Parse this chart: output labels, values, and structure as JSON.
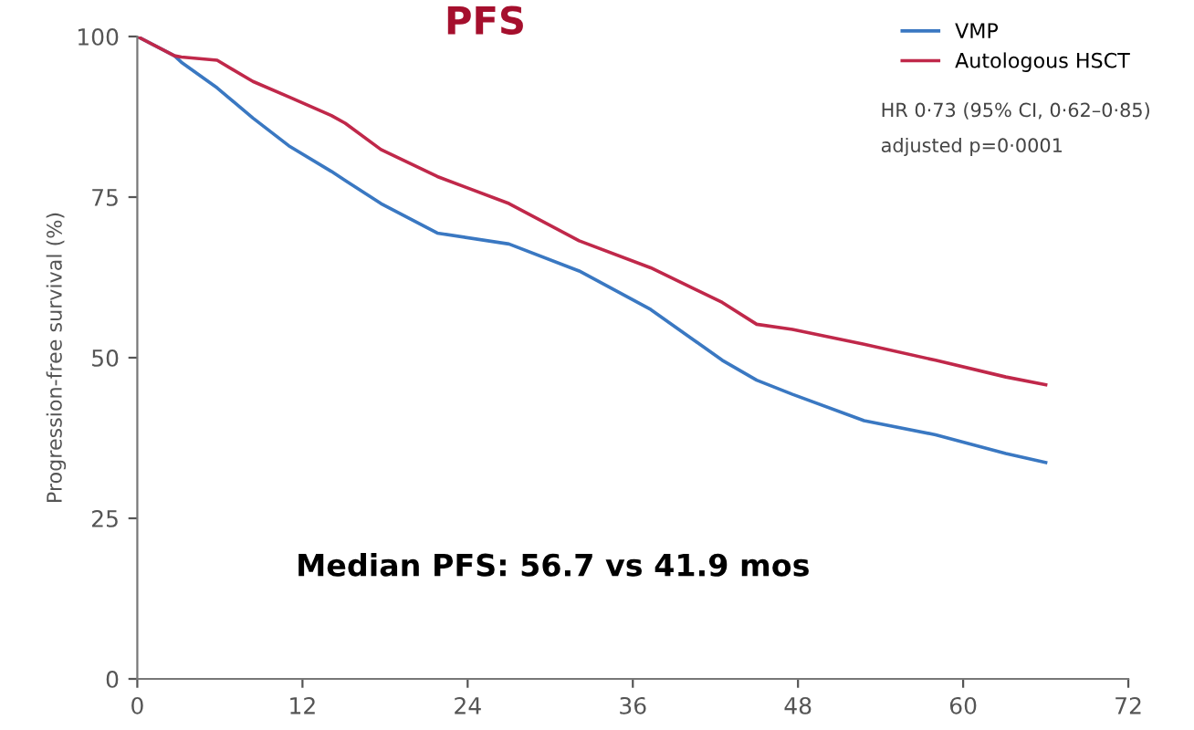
{
  "chart_data": {
    "type": "line",
    "title": "PFS",
    "ylabel": "Progression-free survival (%)",
    "x": [
      0,
      2.7,
      3.2,
      5.8,
      8.4,
      11,
      14.1,
      15.1,
      17.7,
      21.8,
      27,
      32.1,
      37.3,
      42.5,
      45,
      47.6,
      52.8,
      58,
      63.1,
      66
    ],
    "series": [
      {
        "name": "VMP",
        "color": "#3a78c2",
        "values": [
          100,
          97,
          96,
          92,
          87.3,
          83,
          79,
          77.6,
          74,
          69.4,
          67.7,
          63.5,
          57.5,
          49.6,
          46.5,
          44.3,
          40.2,
          38,
          35.1,
          33.7
        ]
      },
      {
        "name": "Autologous HSCT",
        "color": "#c0284a",
        "values": [
          100,
          97,
          96.8,
          96.3,
          93,
          90.6,
          87.7,
          86.5,
          82.4,
          78.2,
          74,
          68.2,
          64,
          58.6,
          55.2,
          54.4,
          52.1,
          49.6,
          47,
          45.8
        ]
      }
    ],
    "xlim": [
      0,
      72
    ],
    "xticks": [
      0,
      12,
      24,
      36,
      48,
      60,
      72
    ],
    "ylim": [
      0,
      100
    ],
    "yticks": [
      0,
      25,
      50,
      75,
      100
    ],
    "grid": false,
    "legend": "top right",
    "annotations": [
      "HR 0·73 (95% CI, 0·62–0·85)",
      "adjusted p=0·0001",
      "Median PFS: 56.7 vs 41.9 mos"
    ]
  }
}
